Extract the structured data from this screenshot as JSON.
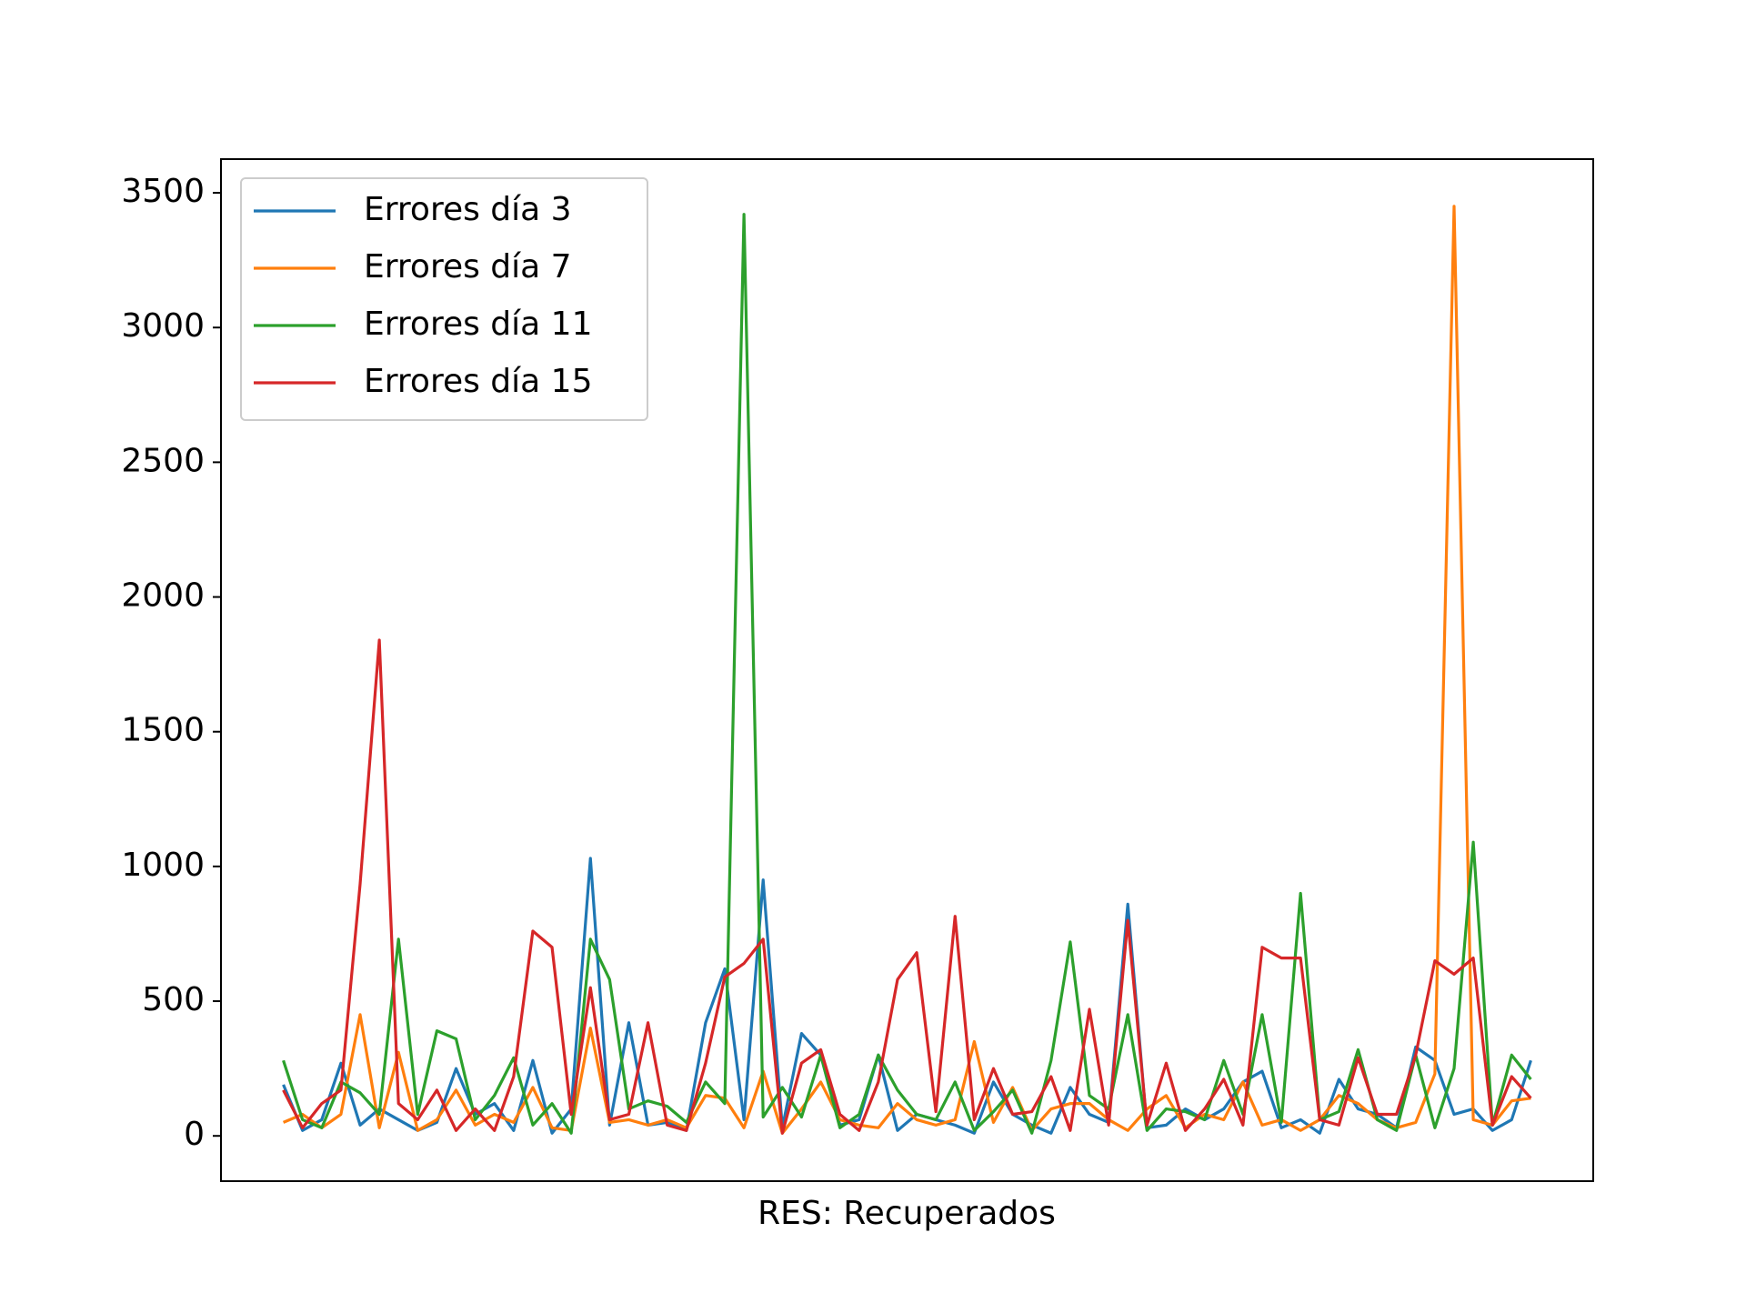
{
  "chart_data": {
    "type": "line",
    "xlabel": "RES: Recuperados",
    "x": [
      0,
      1,
      2,
      3,
      4,
      5,
      6,
      7,
      8,
      9,
      10,
      11,
      12,
      13,
      14,
      15,
      16,
      17,
      18,
      19,
      20,
      21,
      22,
      23,
      24,
      25,
      26,
      27,
      28,
      29,
      30,
      31,
      32,
      33,
      34,
      35,
      36,
      37,
      38,
      39,
      40,
      41,
      42,
      43,
      44,
      45,
      46,
      47,
      48,
      49,
      50,
      51,
      52,
      53,
      54,
      55,
      56,
      57,
      58,
      59,
      60,
      61,
      62,
      63,
      64,
      65
    ],
    "xlim": [
      -3.25,
      68.25
    ],
    "ylim": [
      -168,
      3625
    ],
    "yticks": [
      0,
      500,
      1000,
      1500,
      2000,
      2500,
      3000,
      3500
    ],
    "legend": "upper left",
    "series": [
      {
        "name": "Errores día 3",
        "color": "#1f77b4",
        "values": [
          190,
          20,
          60,
          270,
          40,
          100,
          60,
          20,
          50,
          250,
          80,
          120,
          20,
          280,
          10,
          100,
          1030,
          40,
          420,
          40,
          50,
          20,
          420,
          620,
          60,
          950,
          30,
          380,
          300,
          40,
          60,
          300,
          20,
          80,
          60,
          40,
          10,
          200,
          80,
          40,
          10,
          180,
          80,
          50,
          860,
          30,
          40,
          100,
          60,
          100,
          200,
          240,
          30,
          60,
          10,
          210,
          100,
          80,
          30,
          330,
          280,
          80,
          100,
          20,
          60,
          280
        ]
      },
      {
        "name": "Errores día 7",
        "color": "#ff7f0e",
        "values": [
          50,
          80,
          30,
          80,
          450,
          30,
          310,
          20,
          60,
          170,
          40,
          80,
          50,
          180,
          30,
          20,
          400,
          50,
          60,
          40,
          60,
          30,
          150,
          140,
          30,
          240,
          10,
          100,
          200,
          60,
          40,
          30,
          120,
          60,
          40,
          60,
          350,
          50,
          180,
          20,
          100,
          120,
          120,
          60,
          20,
          100,
          150,
          30,
          80,
          60,
          200,
          40,
          60,
          20,
          60,
          150,
          120,
          60,
          30,
          50,
          230,
          3450,
          60,
          40,
          130,
          140
        ]
      },
      {
        "name": "Errores día 11",
        "color": "#2ca02c",
        "values": [
          280,
          60,
          30,
          200,
          160,
          80,
          730,
          80,
          390,
          360,
          60,
          150,
          290,
          40,
          120,
          10,
          730,
          580,
          100,
          130,
          110,
          50,
          200,
          120,
          3420,
          70,
          180,
          70,
          300,
          30,
          80,
          300,
          170,
          80,
          60,
          200,
          20,
          90,
          170,
          10,
          280,
          720,
          150,
          100,
          450,
          20,
          100,
          90,
          60,
          280,
          80,
          450,
          50,
          900,
          60,
          90,
          320,
          60,
          20,
          300,
          30,
          250,
          1090,
          40,
          300,
          210
        ]
      },
      {
        "name": "Errores día 15",
        "color": "#d62728",
        "values": [
          170,
          30,
          120,
          170,
          935,
          1840,
          120,
          60,
          170,
          20,
          100,
          20,
          220,
          760,
          700,
          80,
          550,
          60,
          80,
          420,
          40,
          20,
          270,
          590,
          640,
          730,
          10,
          270,
          320,
          80,
          20,
          200,
          580,
          680,
          90,
          815,
          60,
          250,
          80,
          90,
          220,
          20,
          470,
          40,
          800,
          40,
          270,
          20,
          100,
          210,
          40,
          700,
          660,
          660,
          60,
          40,
          290,
          80,
          80,
          300,
          650,
          600,
          660,
          40,
          220,
          140
        ]
      }
    ]
  }
}
